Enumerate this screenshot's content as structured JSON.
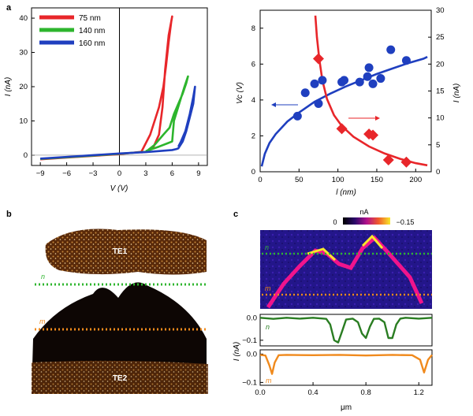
{
  "panels": {
    "a": {
      "letter": "a"
    },
    "b": {
      "letter": "b",
      "labels": {
        "te1": "TE1",
        "te2": "TE2",
        "n": "n",
        "m": "m"
      }
    },
    "c": {
      "letter": "c",
      "colorbar": {
        "unit": "nA",
        "min_label": "0",
        "max_label": "−0.15"
      },
      "map_labels": {
        "n": "n",
        "m": "m"
      },
      "trace_labels": {
        "n": "n",
        "m": "m"
      }
    }
  },
  "colors": {
    "red": "#e8262a",
    "green": "#2db52d",
    "blue": "#1f3fbf",
    "trace_green": "#2a7d22",
    "trace_orange": "#f08a1d"
  },
  "chart_data": [
    {
      "id": "a-left",
      "type": "line",
      "xlabel": "V (V)",
      "ylabel": "I (nA)",
      "xlim": [
        -10,
        10
      ],
      "ylim": [
        -3,
        43
      ],
      "xticks": [
        "−9",
        "−6",
        "−3",
        "0",
        "3",
        "6",
        "9"
      ],
      "xtick_values": [
        -9,
        -6,
        -3,
        0,
        3,
        6,
        9
      ],
      "yticks": [
        "0",
        "10",
        "20",
        "30",
        "40"
      ],
      "ytick_values": [
        0,
        10,
        20,
        30,
        40
      ],
      "legend": "top-left",
      "series": [
        {
          "name": "75 nm",
          "color": "#e8262a",
          "x": [
            -9,
            -6,
            -3,
            0,
            2.5,
            3.5,
            4.5,
            5.0,
            5.3,
            5.6,
            5.9,
            6.0,
            5.6,
            5.2,
            4.9,
            4.5,
            3.8,
            3.0,
            2.5
          ],
          "y": [
            -1.2,
            -0.7,
            -0.2,
            0.3,
            1,
            6,
            14,
            20,
            26,
            33,
            39,
            40.5,
            35,
            25,
            14,
            6,
            2,
            1,
            0.8
          ]
        },
        {
          "name": "140 nm",
          "color": "#2db52d",
          "x": [
            -9,
            -6,
            -3,
            0,
            3,
            4,
            5,
            5.7,
            6.2,
            6.7,
            7.2,
            7.6,
            7.8,
            7.4,
            6.8,
            6.2,
            6.0,
            5.5,
            4.5,
            3.5,
            3.0
          ],
          "y": [
            -1.1,
            -0.6,
            -0.1,
            0.4,
            1,
            3,
            6,
            8,
            12,
            15,
            18,
            21,
            23,
            20,
            15,
            10,
            4,
            3.5,
            2.5,
            1.6,
            1.2
          ]
        },
        {
          "name": "160 nm",
          "color": "#1f3fbf",
          "x": [
            -9,
            -6,
            -3,
            0,
            3,
            5,
            6,
            6.5,
            6.7,
            7.2,
            7.6,
            8.0,
            8.4,
            8.6,
            8.4,
            8.0,
            7.5,
            7.0,
            6.7
          ],
          "y": [
            -1.0,
            -0.5,
            0,
            0.5,
            0.9,
            1.3,
            1.5,
            1.8,
            2,
            4,
            7,
            11,
            15,
            20,
            17,
            12,
            7,
            4,
            2.5
          ]
        }
      ]
    },
    {
      "id": "a-right",
      "type": "scatter",
      "xlabel": "l (nm)",
      "ylabel_left": "Vc (V)",
      "ylabel_right": "I (nA)",
      "xlim": [
        0,
        220
      ],
      "ylim_left": [
        0,
        9
      ],
      "ylim_right": [
        0,
        30
      ],
      "xticks": [
        "0",
        "50",
        "100",
        "150",
        "200"
      ],
      "xtick_values": [
        0,
        50,
        100,
        150,
        200
      ],
      "yticks_left": [
        "0",
        "2",
        "4",
        "6",
        "8"
      ],
      "ytick_values_left": [
        0,
        2,
        4,
        6,
        8
      ],
      "yticks_right": [
        "0",
        "5",
        "10",
        "15",
        "20",
        "25",
        "30"
      ],
      "ytick_values_right": [
        0,
        5,
        10,
        15,
        20,
        25,
        30
      ],
      "series": [
        {
          "name": "Vc",
          "axis": "left",
          "color": "#1f3fbf",
          "marker": "circle",
          "x": [
            48,
            58,
            70,
            75,
            80,
            105,
            108,
            128,
            138,
            140,
            145,
            155,
            168,
            188
          ],
          "y": [
            3.1,
            4.4,
            4.9,
            3.8,
            5.1,
            5.0,
            5.1,
            5.0,
            5.3,
            5.8,
            4.9,
            5.2,
            6.8,
            6.2
          ]
        },
        {
          "name": "I",
          "axis": "right",
          "color": "#e8262a",
          "marker": "diamond",
          "x": [
            75,
            105,
            140,
            145,
            165,
            188
          ],
          "y": [
            21,
            8,
            7,
            6.8,
            2.2,
            1.8
          ]
        },
        {
          "name": "Vc fit",
          "axis": "left",
          "color": "#1f3fbf",
          "line": true,
          "x": [
            2,
            6,
            12,
            20,
            35,
            50,
            70,
            90,
            110,
            130,
            150,
            170,
            190,
            210,
            215
          ],
          "y": [
            0.3,
            1.0,
            1.6,
            2.1,
            2.8,
            3.3,
            3.9,
            4.35,
            4.75,
            5.1,
            5.45,
            5.75,
            6.05,
            6.3,
            6.4
          ]
        },
        {
          "name": "I fit",
          "axis": "right",
          "color": "#e8262a",
          "line": true,
          "x": [
            71,
            73,
            76,
            80,
            86,
            95,
            105,
            120,
            140,
            160,
            180,
            200,
            215
          ],
          "y": [
            29,
            25,
            21,
            17,
            13.5,
            10.5,
            8.5,
            6.5,
            4.7,
            3.4,
            2.4,
            1.6,
            1.2
          ]
        }
      ]
    },
    {
      "id": "c-traces",
      "type": "line",
      "xlabel": "μm",
      "ylabel": "I (nA)",
      "xlim": [
        0,
        1.3
      ],
      "xticks": [
        "0.0",
        "0.4",
        "0.8",
        "1.2"
      ],
      "xtick_values": [
        0,
        0.4,
        0.8,
        1.2
      ],
      "yticks_top": [
        "0.0",
        "−0.1"
      ],
      "ytick_values_top": [
        0,
        -0.1
      ],
      "yticks_bottom": [
        "0.0",
        "−0.1"
      ],
      "ytick_values_bottom": [
        0,
        -0.1
      ],
      "series": [
        {
          "name": "n",
          "color": "#2a7d22",
          "x": [
            0,
            0.1,
            0.2,
            0.3,
            0.4,
            0.5,
            0.53,
            0.56,
            0.59,
            0.62,
            0.65,
            0.7,
            0.74,
            0.77,
            0.8,
            0.83,
            0.86,
            0.9,
            0.94,
            0.97,
            1.0,
            1.03,
            1.06,
            1.1,
            1.2,
            1.3
          ],
          "y": [
            0,
            -0.005,
            0,
            -0.004,
            0,
            -0.005,
            -0.03,
            -0.1,
            -0.11,
            -0.06,
            -0.008,
            -0.004,
            -0.02,
            -0.07,
            -0.09,
            -0.04,
            -0.005,
            -0.004,
            -0.02,
            -0.09,
            -0.09,
            -0.03,
            -0.004,
            0,
            -0.004,
            0
          ]
        },
        {
          "name": "m",
          "color": "#f08a1d",
          "x": [
            0,
            0.04,
            0.07,
            0.09,
            0.11,
            0.14,
            0.2,
            0.4,
            0.6,
            0.8,
            1.0,
            1.15,
            1.21,
            1.24,
            1.27,
            1.3
          ],
          "y": [
            -0.003,
            -0.005,
            -0.04,
            -0.07,
            -0.03,
            -0.004,
            -0.003,
            -0.004,
            -0.003,
            -0.005,
            -0.003,
            -0.004,
            -0.02,
            -0.065,
            -0.02,
            -0.003
          ]
        }
      ]
    }
  ]
}
